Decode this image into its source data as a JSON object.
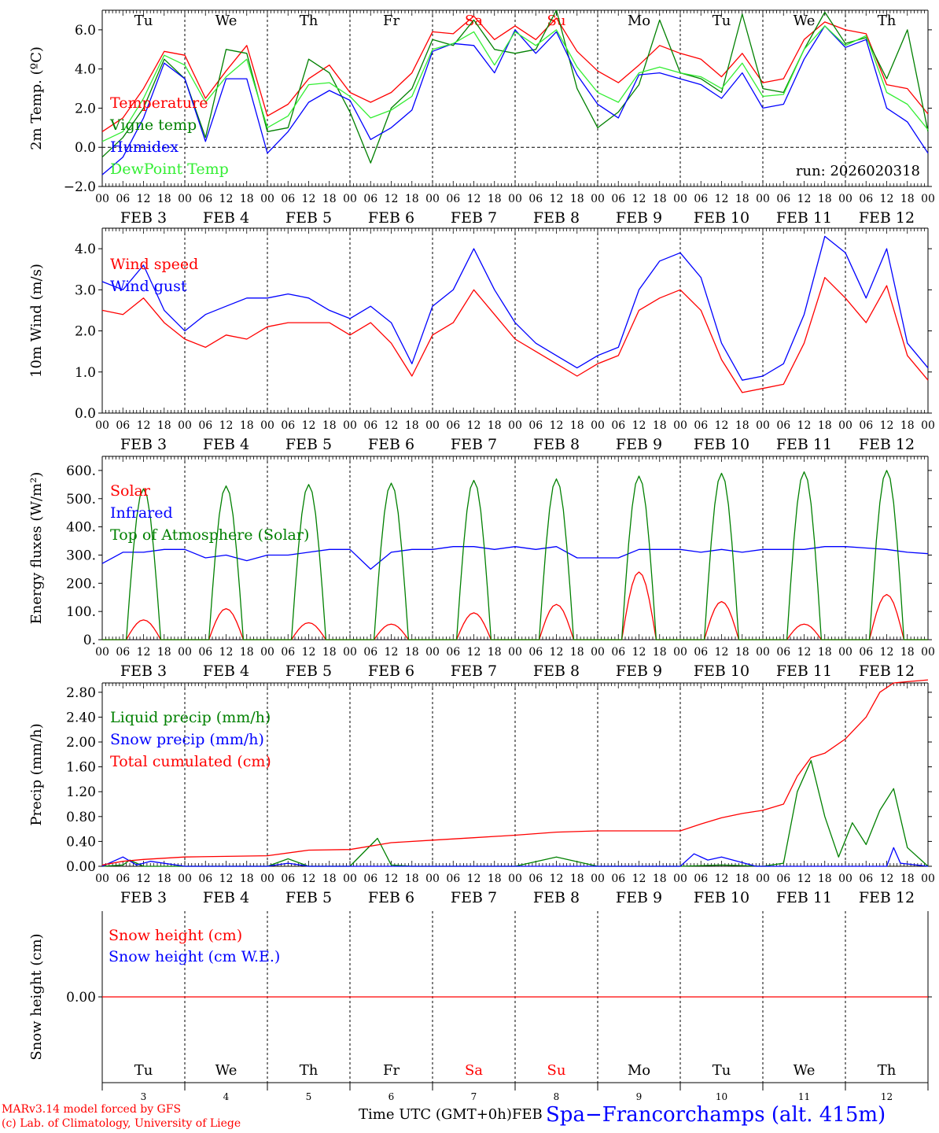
{
  "run_label": "run: 2026020318",
  "footer": {
    "model_line": "MARv3.14 model forced by GFS",
    "copyright_line": "(c) Lab. of Climatology, University of Liege",
    "time_label": "Time UTC (GMT+0h)",
    "time_suffix": "FEB",
    "station": "Spa−Francorchamps (alt. 415m)"
  },
  "colors": {
    "red": "#ff0000",
    "green": "#008000",
    "blue": "#0000ff",
    "lightgreen": "#33ee33",
    "weekend": "#ff0000",
    "axis": "#000000"
  },
  "time_axis": {
    "hour_ticks": [
      "00",
      "06",
      "12",
      "18"
    ],
    "end_tick": "00",
    "day_labels": [
      "FEB  3",
      "FEB  4",
      "FEB  5",
      "FEB  6",
      "FEB  7",
      "FEB  8",
      "FEB  9",
      "FEB 10",
      "FEB 11",
      "FEB 12"
    ],
    "day_numbers": [
      "3",
      "4",
      "5",
      "6",
      "7",
      "8",
      "9",
      "10",
      "11",
      "12"
    ],
    "weekdays": [
      "Tu",
      "We",
      "Th",
      "Fr",
      "Sa",
      "Su",
      "Mo",
      "Tu",
      "We",
      "Th"
    ],
    "weekend_days": [
      4,
      5
    ]
  },
  "chart_data": [
    {
      "type": "line",
      "title": "",
      "xlabel": "",
      "ylabel": "2m Temp. (ºC)",
      "ylim": [
        -2.0,
        7.0
      ],
      "yticks": [
        -2.0,
        0.0,
        2.0,
        4.0,
        6.0
      ],
      "ytick_labels": [
        "−2.0",
        "0.0",
        "2.0",
        "4.0",
        "6.0"
      ],
      "x_unit": "hours since FEB 3 00 UTC",
      "xlim": [
        0,
        240
      ],
      "zero_line": true,
      "weekday_header": true,
      "series": [
        {
          "name": "Temperature",
          "color": "red",
          "x": [
            0,
            6,
            12,
            18,
            24,
            30,
            36,
            42,
            48,
            54,
            60,
            66,
            72,
            78,
            84,
            90,
            96,
            102,
            108,
            114,
            120,
            126,
            132,
            138,
            144,
            150,
            156,
            162,
            168,
            174,
            180,
            186,
            192,
            198,
            204,
            210,
            216,
            222,
            228,
            234,
            240
          ],
          "values": [
            0.8,
            1.5,
            3.0,
            4.9,
            4.7,
            2.5,
            3.9,
            5.2,
            1.6,
            2.2,
            3.5,
            4.2,
            2.8,
            2.3,
            2.8,
            3.8,
            5.9,
            5.8,
            6.7,
            5.5,
            6.2,
            5.5,
            6.6,
            4.9,
            3.9,
            3.3,
            4.2,
            5.2,
            4.8,
            4.5,
            3.6,
            4.8,
            3.3,
            3.5,
            5.5,
            6.4,
            6.0,
            5.8,
            3.2,
            3.0,
            1.7
          ]
        },
        {
          "name": "Vigne temp",
          "color": "green",
          "x": [
            0,
            6,
            12,
            18,
            24,
            30,
            36,
            42,
            48,
            54,
            60,
            66,
            72,
            78,
            84,
            90,
            96,
            102,
            108,
            114,
            120,
            126,
            132,
            138,
            144,
            150,
            156,
            162,
            168,
            174,
            180,
            186,
            192,
            198,
            204,
            210,
            216,
            222,
            228,
            234,
            240
          ],
          "values": [
            -0.5,
            0.5,
            2.0,
            4.5,
            3.5,
            0.5,
            5.0,
            4.8,
            0.8,
            1.0,
            4.5,
            3.8,
            1.8,
            -0.8,
            2.0,
            3.0,
            5.5,
            5.2,
            6.5,
            5.0,
            4.8,
            5.0,
            7.0,
            3.0,
            1.0,
            1.8,
            3.2,
            6.5,
            3.8,
            3.5,
            2.8,
            6.8,
            3.0,
            2.8,
            5.0,
            6.9,
            5.3,
            5.6,
            3.5,
            6.0,
            0.8
          ]
        },
        {
          "name": "Humidex",
          "color": "blue",
          "x": [
            0,
            6,
            12,
            18,
            24,
            30,
            36,
            42,
            48,
            54,
            60,
            66,
            72,
            78,
            84,
            90,
            96,
            102,
            108,
            114,
            120,
            126,
            132,
            138,
            144,
            150,
            156,
            162,
            168,
            174,
            180,
            186,
            192,
            198,
            204,
            210,
            216,
            222,
            228,
            234,
            240
          ],
          "values": [
            -1.4,
            -0.5,
            1.5,
            4.3,
            3.5,
            0.3,
            3.5,
            3.5,
            -0.3,
            0.8,
            2.3,
            2.9,
            2.4,
            0.4,
            1.0,
            1.9,
            4.9,
            5.3,
            5.2,
            3.8,
            6.0,
            4.8,
            5.9,
            3.7,
            2.2,
            1.5,
            3.7,
            3.8,
            3.5,
            3.2,
            2.5,
            3.8,
            2.0,
            2.2,
            4.5,
            6.2,
            5.1,
            5.5,
            2.0,
            1.3,
            -0.3
          ]
        },
        {
          "name": "DewPoint Temp",
          "color": "lightgreen",
          "x": [
            0,
            6,
            12,
            18,
            24,
            30,
            36,
            42,
            48,
            54,
            60,
            66,
            72,
            78,
            84,
            90,
            96,
            102,
            108,
            114,
            120,
            126,
            132,
            138,
            144,
            150,
            156,
            162,
            168,
            174,
            180,
            186,
            192,
            198,
            204,
            210,
            216,
            222,
            228,
            234,
            240
          ],
          "values": [
            0.3,
            0.8,
            2.5,
            4.7,
            4.2,
            2.3,
            3.6,
            4.5,
            1.0,
            1.6,
            3.2,
            3.3,
            2.6,
            1.5,
            1.9,
            2.6,
            5.0,
            5.3,
            5.9,
            4.2,
            5.9,
            5.2,
            6.0,
            4.1,
            2.8,
            2.3,
            3.8,
            4.1,
            3.8,
            3.6,
            3.0,
            4.3,
            2.6,
            2.7,
            5.0,
            6.2,
            5.2,
            5.7,
            2.8,
            2.2,
            0.9
          ]
        }
      ],
      "annotations": [
        "run: 2026020318"
      ]
    },
    {
      "type": "line",
      "title": "",
      "xlabel": "",
      "ylabel": "10m Wind (m/s)",
      "ylim": [
        0.0,
        4.5
      ],
      "yticks": [
        0.0,
        1.0,
        2.0,
        3.0,
        4.0
      ],
      "ytick_labels": [
        "0.0",
        "1.0",
        "2.0",
        "3.0",
        "4.0"
      ],
      "x_unit": "hours since FEB 3 00 UTC",
      "xlim": [
        0,
        240
      ],
      "series": [
        {
          "name": "Wind speed",
          "color": "red",
          "x": [
            0,
            6,
            12,
            18,
            24,
            30,
            36,
            42,
            48,
            54,
            60,
            66,
            72,
            78,
            84,
            90,
            96,
            102,
            108,
            114,
            120,
            126,
            132,
            138,
            144,
            150,
            156,
            162,
            168,
            174,
            180,
            186,
            192,
            198,
            204,
            210,
            216,
            222,
            228,
            234,
            240
          ],
          "values": [
            2.5,
            2.4,
            2.8,
            2.2,
            1.8,
            1.6,
            1.9,
            1.8,
            2.1,
            2.2,
            2.2,
            2.2,
            1.9,
            2.2,
            1.7,
            0.9,
            1.9,
            2.2,
            3.0,
            2.4,
            1.8,
            1.5,
            1.2,
            0.9,
            1.2,
            1.4,
            2.5,
            2.8,
            3.0,
            2.5,
            1.3,
            0.5,
            0.6,
            0.7,
            1.7,
            3.3,
            2.8,
            2.2,
            3.1,
            1.4,
            0.8
          ]
        },
        {
          "name": "Wind gust",
          "color": "blue",
          "x": [
            0,
            6,
            12,
            18,
            24,
            30,
            36,
            42,
            48,
            54,
            60,
            66,
            72,
            78,
            84,
            90,
            96,
            102,
            108,
            114,
            120,
            126,
            132,
            138,
            144,
            150,
            156,
            162,
            168,
            174,
            180,
            186,
            192,
            198,
            204,
            210,
            216,
            222,
            228,
            234,
            240
          ],
          "values": [
            3.2,
            3.0,
            3.6,
            2.5,
            2.0,
            2.4,
            2.6,
            2.8,
            2.8,
            2.9,
            2.8,
            2.5,
            2.3,
            2.6,
            2.2,
            1.2,
            2.6,
            3.0,
            4.0,
            3.0,
            2.2,
            1.7,
            1.4,
            1.1,
            1.4,
            1.6,
            3.0,
            3.7,
            3.9,
            3.3,
            1.7,
            0.8,
            0.9,
            1.2,
            2.4,
            4.3,
            3.9,
            2.8,
            4.0,
            1.7,
            1.1
          ]
        }
      ]
    },
    {
      "type": "line",
      "title": "",
      "xlabel": "",
      "ylabel": "Energy fluxes (W/m²)",
      "ylim": [
        0,
        650
      ],
      "yticks": [
        0,
        100,
        200,
        300,
        400,
        500,
        600
      ],
      "ytick_labels": [
        "0.",
        "100.",
        "200.",
        "300.",
        "400.",
        "500.",
        "600."
      ],
      "x_unit": "hours since FEB 3 00 UTC",
      "xlim": [
        0,
        240
      ],
      "series": [
        {
          "name": "Solar",
          "color": "red",
          "diurnal": true,
          "values": [
            70,
            110,
            60,
            55,
            95,
            125,
            240,
            135,
            55,
            160
          ]
        },
        {
          "name": "Infrared",
          "color": "blue",
          "x": [
            0,
            6,
            12,
            18,
            24,
            30,
            36,
            42,
            48,
            54,
            60,
            66,
            72,
            78,
            84,
            90,
            96,
            102,
            108,
            114,
            120,
            126,
            132,
            138,
            144,
            150,
            156,
            162,
            168,
            174,
            180,
            186,
            192,
            198,
            204,
            210,
            216,
            222,
            228,
            234,
            240
          ],
          "values": [
            270,
            310,
            310,
            320,
            320,
            290,
            300,
            280,
            300,
            300,
            310,
            320,
            320,
            250,
            310,
            320,
            320,
            330,
            330,
            320,
            330,
            320,
            330,
            290,
            290,
            290,
            320,
            320,
            320,
            310,
            320,
            310,
            320,
            320,
            320,
            330,
            330,
            325,
            320,
            310,
            305
          ]
        },
        {
          "name": "Top of Atmosphere (Solar)",
          "color": "green",
          "diurnal": true,
          "values": [
            535,
            545,
            550,
            555,
            565,
            570,
            580,
            590,
            595,
            600
          ]
        }
      ]
    },
    {
      "type": "line",
      "title": "",
      "xlabel": "",
      "ylabel": "Precip (mm/h)",
      "ylim": [
        0.0,
        2.95
      ],
      "yticks": [
        0.0,
        0.4,
        0.8,
        1.2,
        1.6,
        2.0,
        2.4,
        2.8
      ],
      "ytick_labels": [
        "0.00",
        "0.40",
        "0.80",
        "1.20",
        "1.60",
        "2.00",
        "2.40",
        "2.80"
      ],
      "x_unit": "hours since FEB 3 00 UTC",
      "xlim": [
        0,
        240
      ],
      "series": [
        {
          "name": "Liquid precip (mm/h)",
          "color": "green",
          "x": [
            0,
            6,
            8,
            12,
            24,
            48,
            54,
            60,
            72,
            80,
            84,
            90,
            96,
            120,
            132,
            144,
            168,
            180,
            192,
            198,
            202,
            206,
            210,
            214,
            218,
            222,
            226,
            230,
            234,
            240
          ],
          "values": [
            0.0,
            0.02,
            0.1,
            0.0,
            0.0,
            0.0,
            0.12,
            0.0,
            0.0,
            0.45,
            0.02,
            0.0,
            0.0,
            0.0,
            0.15,
            0.0,
            0.0,
            0.02,
            0.0,
            0.05,
            1.2,
            1.7,
            0.8,
            0.15,
            0.7,
            0.35,
            0.9,
            1.25,
            0.3,
            0.0
          ]
        },
        {
          "name": "Snow precip (mm/h)",
          "color": "blue",
          "x": [
            0,
            6,
            10,
            14,
            24,
            48,
            54,
            60,
            72,
            96,
            120,
            168,
            172,
            176,
            180,
            190,
            204,
            228,
            230,
            232,
            240
          ],
          "values": [
            0.0,
            0.15,
            0.02,
            0.08,
            0.0,
            0.0,
            0.05,
            0.0,
            0.0,
            0.0,
            0.0,
            0.0,
            0.2,
            0.1,
            0.15,
            0.0,
            0.0,
            0.0,
            0.3,
            0.05,
            0.0
          ]
        },
        {
          "name": "Total cumulated (cm)",
          "color": "red",
          "x": [
            0,
            6,
            12,
            24,
            48,
            60,
            72,
            84,
            96,
            108,
            120,
            132,
            144,
            168,
            174,
            180,
            186,
            192,
            198,
            202,
            206,
            210,
            216,
            222,
            226,
            230,
            234,
            240
          ],
          "values": [
            0.02,
            0.08,
            0.11,
            0.15,
            0.17,
            0.26,
            0.27,
            0.38,
            0.42,
            0.46,
            0.5,
            0.55,
            0.57,
            0.57,
            0.68,
            0.78,
            0.85,
            0.9,
            1.0,
            1.45,
            1.75,
            1.82,
            2.05,
            2.4,
            2.8,
            2.95,
            2.97,
            3.0
          ]
        }
      ]
    },
    {
      "type": "line",
      "title": "",
      "xlabel": "Time UTC (GMT+0h)",
      "ylabel": "Snow height (cm)",
      "ylim": [
        -1.0,
        1.0
      ],
      "yticks": [
        0.0
      ],
      "ytick_labels": [
        "0.00"
      ],
      "x_unit": "hours since FEB 3 00 UTC",
      "xlim": [
        0,
        240
      ],
      "series": [
        {
          "name": "Snow height (cm)",
          "color": "red",
          "x": [
            0,
            240
          ],
          "values": [
            0.0,
            0.0
          ]
        },
        {
          "name": "Snow height (cm W.E.)",
          "color": "blue",
          "x": [],
          "values": []
        }
      ]
    }
  ]
}
